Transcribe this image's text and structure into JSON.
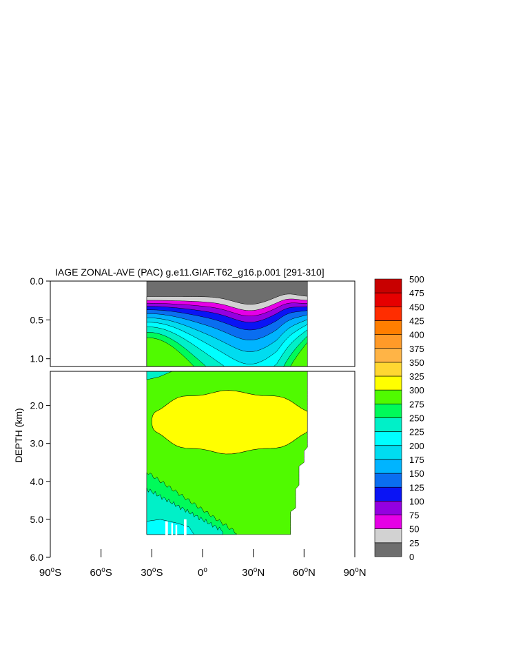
{
  "chart_data": {
    "type": "heatmap",
    "title": "IAGE ZONAL-AVE (PAC) g.e11.GIAF.T62_g16.p.001 [291-310]",
    "ylabel": "DEPTH (km)",
    "x_ticks": [
      {
        "deg": "90",
        "hemi": "S",
        "value": -90
      },
      {
        "deg": "60",
        "hemi": "S",
        "value": -60
      },
      {
        "deg": "30",
        "hemi": "S",
        "value": -30
      },
      {
        "deg": "0",
        "hemi": "",
        "value": 0
      },
      {
        "deg": "30",
        "hemi": "N",
        "value": 30
      },
      {
        "deg": "60",
        "hemi": "N",
        "value": 60
      },
      {
        "deg": "90",
        "hemi": "N",
        "value": 90
      }
    ],
    "upper_panel": {
      "y_range_km": [
        0.0,
        1.1
      ],
      "y_ticks": [
        "0.0",
        "0.5",
        "1.0"
      ]
    },
    "lower_panel": {
      "y_range_km": [
        1.1,
        6.0
      ],
      "y_ticks": [
        "2.0",
        "3.0",
        "4.0",
        "5.0",
        "6.0"
      ]
    },
    "xlim": [
      -90,
      90
    ],
    "data_extent": {
      "lon_min": -33,
      "lon_max": 62,
      "max_depth_km": 5.4
    },
    "colorbar": {
      "levels": [
        "0",
        "25",
        "50",
        "75",
        "100",
        "125",
        "150",
        "175",
        "200",
        "225",
        "250",
        "275",
        "300",
        "325",
        "350",
        "375",
        "400",
        "425",
        "450",
        "475",
        "500"
      ],
      "colors": [
        "#6e6e6e",
        "#d2d2d2",
        "#e600e6",
        "#9400e0",
        "#0a14f5",
        "#0a6ef0",
        "#00b4ff",
        "#00dcf0",
        "#00ffff",
        "#00f0c8",
        "#00fa5a",
        "#50fa00",
        "#ffff00",
        "#ffd732",
        "#ffb446",
        "#ff9a28",
        "#ff7e00",
        "#ff2d00",
        "#e60000",
        "#c80000"
      ]
    },
    "grid": false
  }
}
